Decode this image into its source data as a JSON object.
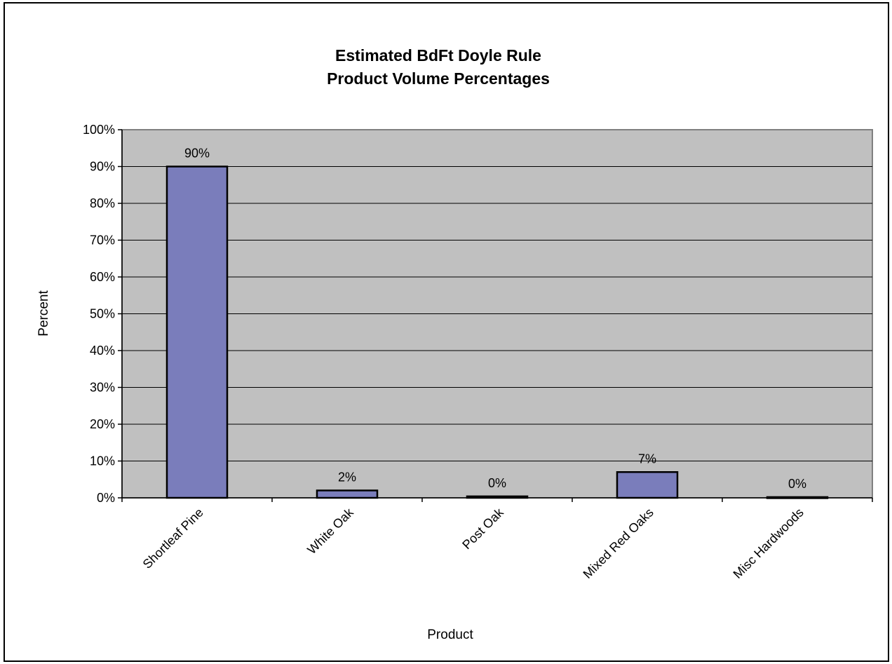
{
  "chart_data": {
    "type": "bar",
    "title": [
      "Estimated BdFt Doyle Rule",
      "Product Volume Percentages"
    ],
    "xlabel": "Product",
    "ylabel": "Percent",
    "categories": [
      "Shortleaf Pine",
      "White Oak",
      "Post Oak",
      "Mixed Red Oaks",
      "Misc Hardwoods"
    ],
    "values": [
      90,
      2,
      0.4,
      7,
      0.2
    ],
    "data_labels": [
      "90%",
      "2%",
      "0%",
      "7%",
      "0%"
    ],
    "ylim": [
      0,
      100
    ],
    "yticks": [
      0,
      10,
      20,
      30,
      40,
      50,
      60,
      70,
      80,
      90,
      100
    ],
    "ytick_labels": [
      "0%",
      "10%",
      "20%",
      "30%",
      "40%",
      "50%",
      "60%",
      "70%",
      "80%",
      "90%",
      "100%"
    ],
    "grid": true,
    "legend": "none",
    "colors": {
      "bar_fill": "#7a7dbb",
      "bar_stroke": "#000000",
      "plot_background": "#c0c0c0",
      "gridline": "#000000"
    }
  }
}
